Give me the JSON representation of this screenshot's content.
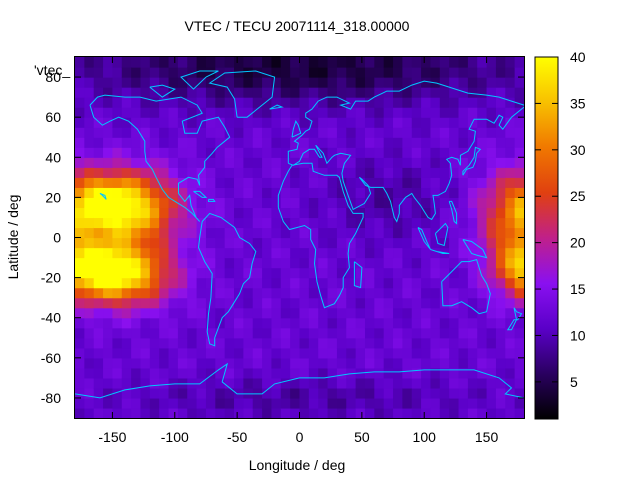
{
  "chart_data": {
    "type": "heatmap",
    "title": "VTEC / TECU 20071114_318.00000",
    "xlabel": "Longitude / deg",
    "ylabel": "Latitude / deg",
    "key_label": "'vtec_",
    "xlim": [
      -180,
      180
    ],
    "ylim": [
      -90,
      90
    ],
    "x_ticks": [
      -150,
      -100,
      -50,
      0,
      50,
      100,
      150
    ],
    "y_ticks": [
      -80,
      -60,
      -40,
      -20,
      0,
      20,
      40,
      60,
      80
    ],
    "colorbar": {
      "min": 1,
      "max": 40,
      "ticks": [
        5,
        10,
        15,
        20,
        25,
        30,
        35,
        40
      ]
    },
    "colormap": [
      "#000000",
      "#2a0060",
      "#5a00c8",
      "#8a10f0",
      "#c0208a",
      "#e04010",
      "#f07800",
      "#f8c000",
      "#ffff00"
    ],
    "coastline_color": "#00c8ff",
    "background_vtec": 12,
    "features": [
      {
        "lon": -140,
        "lat": 15,
        "radius_lon": 40,
        "radius_lat": 18,
        "peak": 28
      },
      {
        "lon": -145,
        "lat": -18,
        "radius_lon": 40,
        "radius_lat": 15,
        "peak": 28
      },
      {
        "lon": -160,
        "lat": 18,
        "radius_lon": 18,
        "radius_lat": 10,
        "peak": 10
      },
      {
        "lon": -160,
        "lat": -15,
        "radius_lon": 18,
        "radius_lat": 9,
        "peak": 10
      },
      {
        "lon": 170,
        "lat": 12,
        "radius_lon": 28,
        "radius_lat": 22,
        "peak": 12
      },
      {
        "lon": 175,
        "lat": -12,
        "radius_lon": 22,
        "radius_lat": 15,
        "peak": 10
      },
      {
        "lon": 0,
        "lat": 85,
        "radius_lon": 180,
        "radius_lat": 18,
        "peak": -8
      },
      {
        "lon": 0,
        "lat": -80,
        "radius_lon": 140,
        "radius_lat": 10,
        "peak": -3
      },
      {
        "lon": 70,
        "lat": 20,
        "radius_lon": 50,
        "radius_lat": 20,
        "peak": -3
      }
    ]
  }
}
